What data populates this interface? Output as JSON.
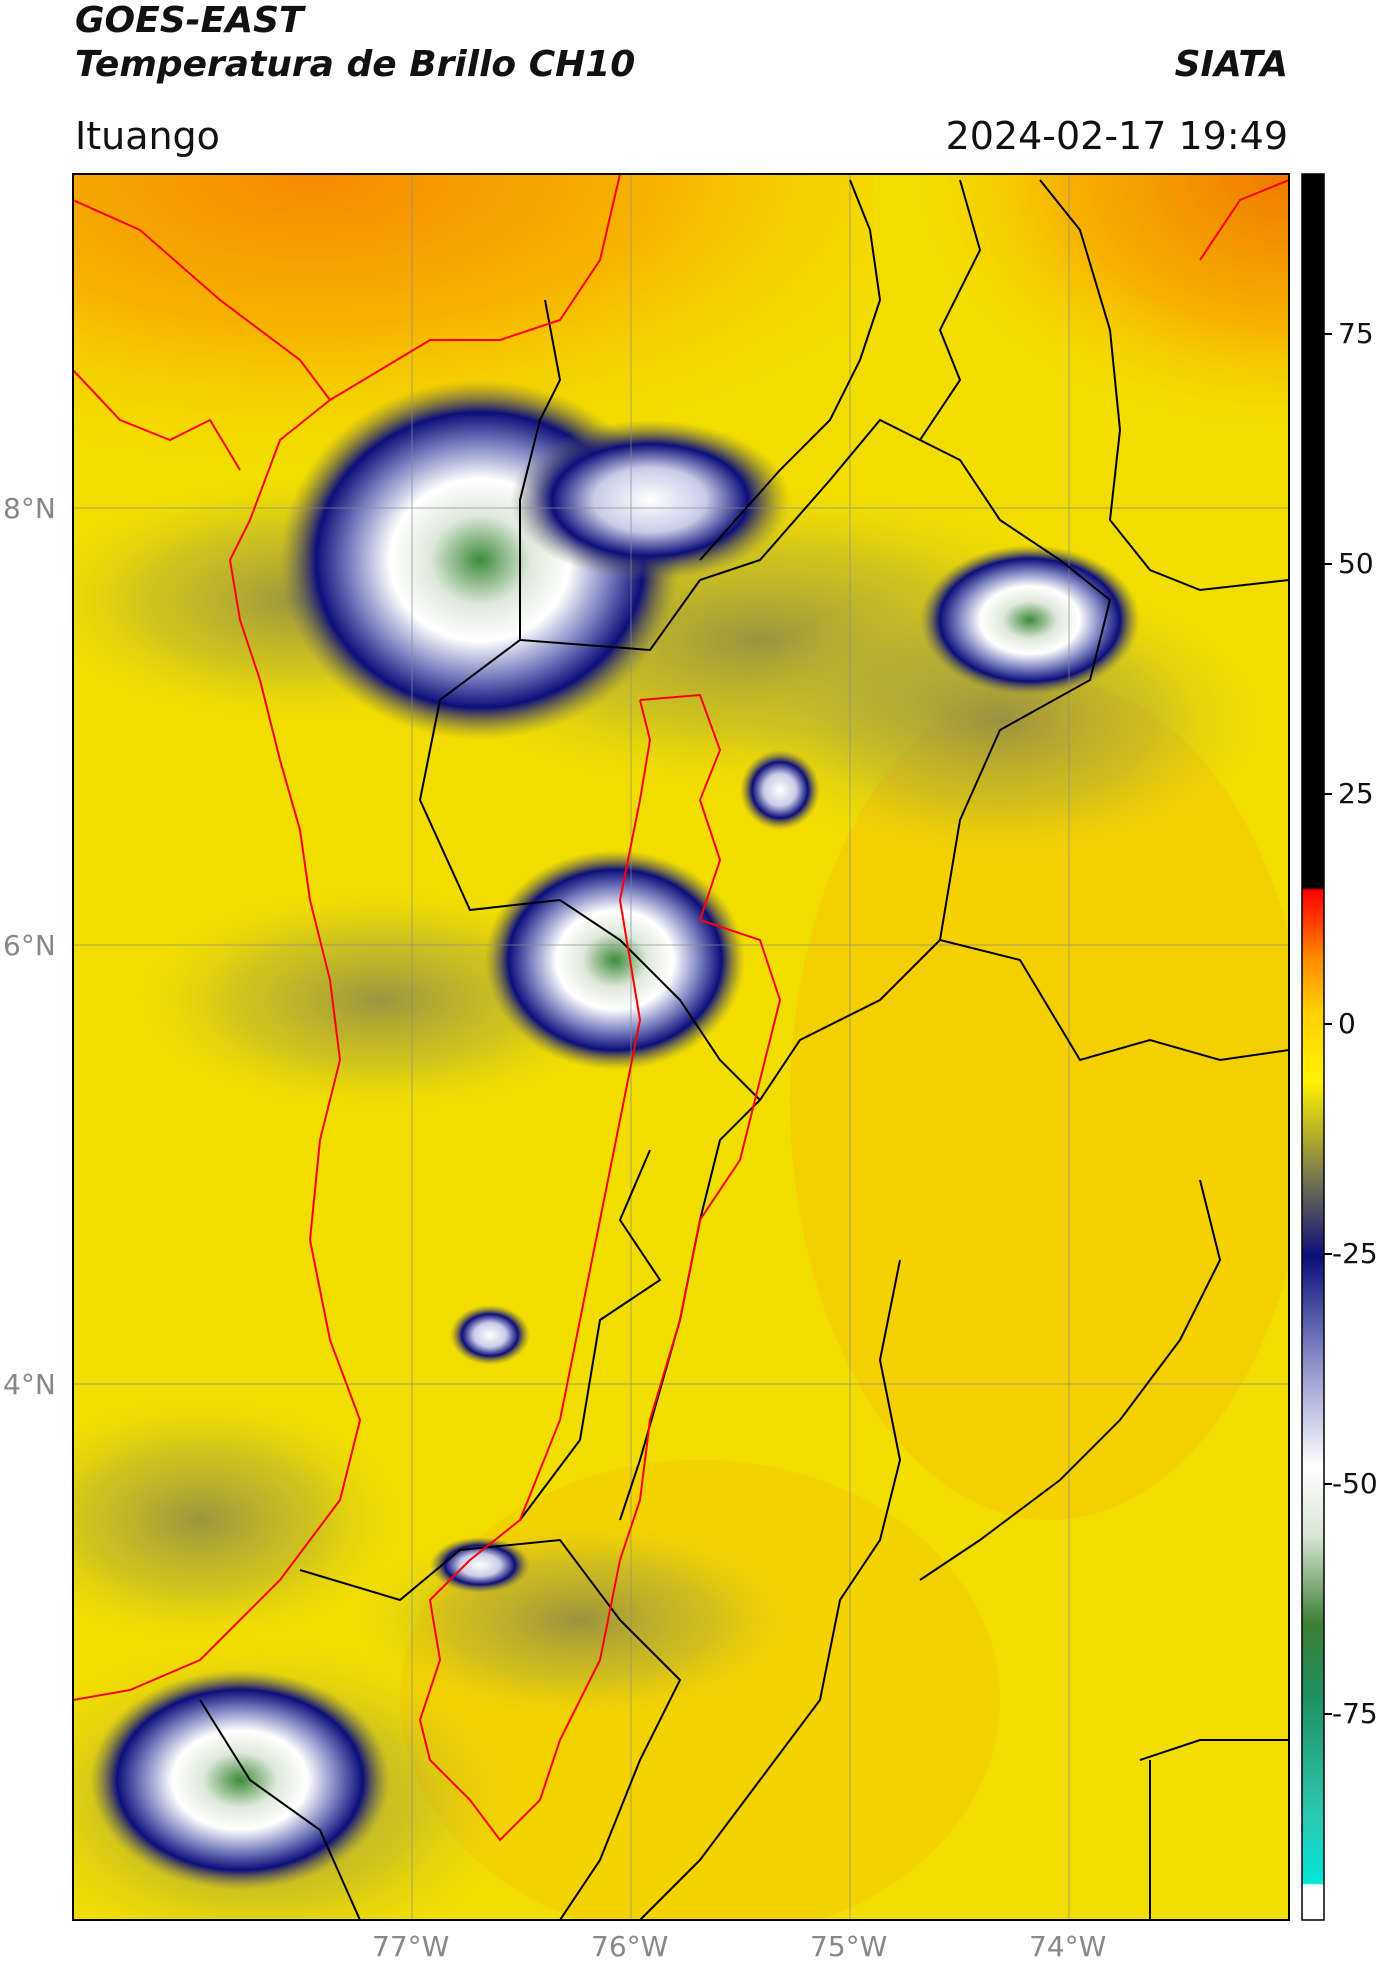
{
  "header": {
    "line1": "GOES-EAST",
    "line2": "Temperatura de Brillo CH10",
    "brand": "SIATA",
    "location": "Ituango",
    "datetime": "2024-02-17 19:49"
  },
  "map": {
    "lat_labels": [
      "8°N",
      "6°N",
      "4°N"
    ],
    "lon_labels": [
      "77°W",
      "76°W",
      "75°W",
      "74°W"
    ],
    "lat_values": [
      8,
      6,
      4
    ],
    "lon_values": [
      -77,
      -76,
      -75,
      -74
    ],
    "background_color": "#f2dd00",
    "border_color": "#000000",
    "boundary_color": "#ff0000"
  },
  "colorbar": {
    "tick_labels": [
      "75",
      "50",
      "25",
      "0",
      "-25",
      "-50",
      "-75"
    ],
    "tick_values": [
      75,
      50,
      25,
      0,
      -25,
      -50,
      -75
    ],
    "range": [
      -100,
      90
    ],
    "colors": [
      "#ffffff",
      "#2cd5c9",
      "#1f8f5f",
      "#3d7f35",
      "#d9e6d6",
      "#ffffff",
      "#5a5fad",
      "#0c0e7a",
      "#6b6b55",
      "#fff200",
      "#ff8c00",
      "#ff0000",
      "#000000"
    ]
  }
}
